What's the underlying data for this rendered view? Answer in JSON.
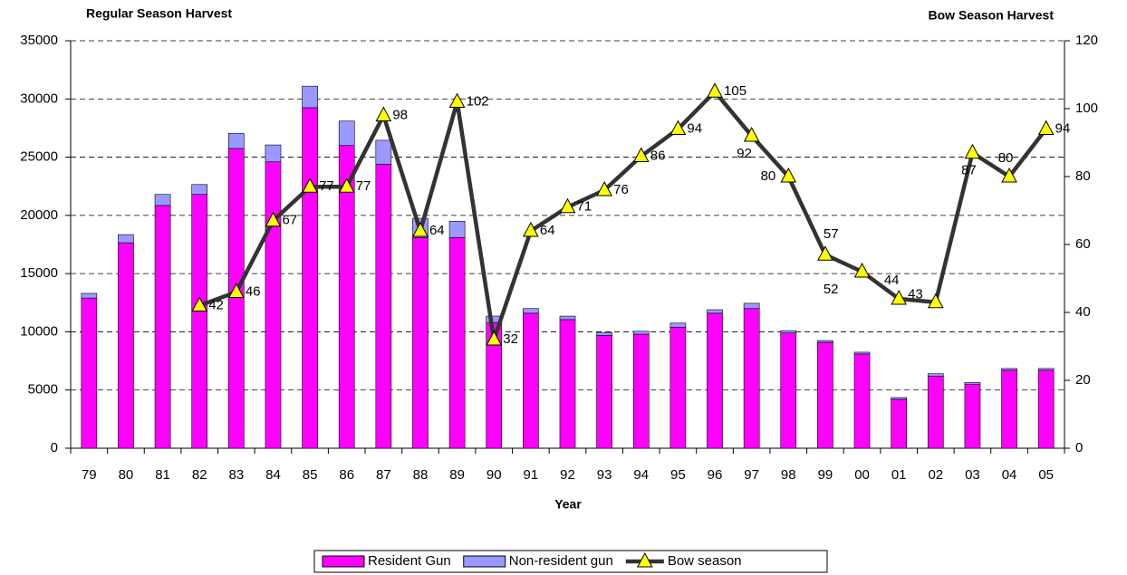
{
  "chart_data": {
    "type": "bar",
    "stacked": true,
    "title": "Regular Season Harvest",
    "y2_title": "Bow Season Harvest",
    "x_label": "Year",
    "categories": [
      "79",
      "80",
      "81",
      "82",
      "83",
      "84",
      "85",
      "86",
      "87",
      "88",
      "89",
      "90",
      "91",
      "92",
      "93",
      "94",
      "95",
      "96",
      "97",
      "98",
      "99",
      "00",
      "01",
      "02",
      "03",
      "04",
      "05"
    ],
    "series": [
      {
        "name": "Resident Gun",
        "color": "#ff00ff",
        "type": "bar",
        "values": [
          12900,
          17650,
          20850,
          21800,
          25750,
          24600,
          29250,
          26000,
          24400,
          18100,
          18100,
          10800,
          11600,
          11050,
          9700,
          9800,
          10400,
          11600,
          12000,
          9900,
          9100,
          8100,
          4200,
          6200,
          5500,
          6700,
          6700
        ]
      },
      {
        "name": "Non-resident gun",
        "color": "#9999ff",
        "type": "bar",
        "values": [
          400,
          700,
          950,
          850,
          1300,
          1450,
          1850,
          2100,
          2050,
          1650,
          1400,
          550,
          400,
          300,
          250,
          250,
          350,
          300,
          450,
          200,
          150,
          150,
          150,
          200,
          150,
          150,
          150
        ]
      },
      {
        "name": "Bow season",
        "color": "#333333",
        "marker_color": "#ffff00",
        "type": "line",
        "axis": "y2",
        "values": [
          null,
          null,
          null,
          42,
          46,
          67,
          77,
          77,
          98,
          64,
          102,
          32,
          64,
          71,
          76,
          86,
          94,
          105,
          92,
          80,
          57,
          52,
          44,
          43,
          87,
          80,
          94
        ]
      }
    ],
    "ylim": [
      0,
      35000
    ],
    "yticks": [
      0,
      5000,
      10000,
      15000,
      20000,
      25000,
      30000,
      35000
    ],
    "y2lim": [
      0,
      120
    ],
    "y2ticks": [
      0,
      20,
      40,
      60,
      80,
      100,
      120
    ],
    "grid": true,
    "legend": "bottom"
  }
}
